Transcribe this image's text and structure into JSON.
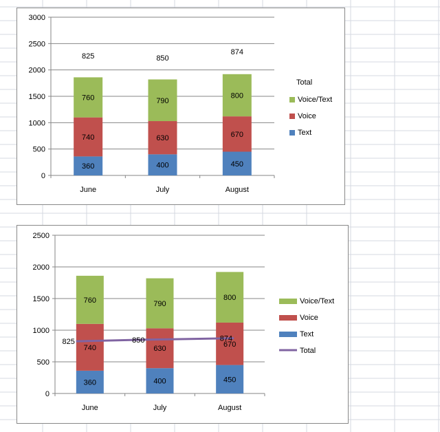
{
  "colors": {
    "text": "#4F81BD",
    "voice": "#C0504D",
    "voice_text": "#9BBB59",
    "total": "#8064A2",
    "gridline": "#868686",
    "cell_grid": "#D4D8E0"
  },
  "chart_data": [
    {
      "type": "bar",
      "stacked": true,
      "categories": [
        "June",
        "July",
        "August"
      ],
      "series": [
        {
          "name": "Text",
          "values": [
            360,
            400,
            450
          ],
          "color_key": "text"
        },
        {
          "name": "Voice",
          "values": [
            740,
            630,
            670
          ],
          "color_key": "voice"
        },
        {
          "name": "Voice/Text",
          "values": [
            760,
            790,
            800
          ],
          "color_key": "voice_text"
        }
      ],
      "totals": {
        "name": "Total",
        "values": [
          825,
          850,
          874
        ],
        "display": "labels-only"
      },
      "legend": {
        "title": "Total",
        "items": [
          "Voice/Text",
          "Voice",
          "Text"
        ],
        "position": "right"
      },
      "ylim": [
        0,
        3000
      ],
      "yticks": [
        0,
        500,
        1000,
        1500,
        2000,
        2500,
        3000
      ],
      "grid": true,
      "title": "",
      "xlabel": "",
      "ylabel": ""
    },
    {
      "type": "bar",
      "stacked": true,
      "categories": [
        "June",
        "July",
        "August"
      ],
      "series": [
        {
          "name": "Text",
          "values": [
            360,
            400,
            450
          ],
          "color_key": "text"
        },
        {
          "name": "Voice",
          "values": [
            740,
            630,
            670
          ],
          "color_key": "voice"
        },
        {
          "name": "Voice/Text",
          "values": [
            760,
            790,
            800
          ],
          "color_key": "voice_text"
        }
      ],
      "totals": {
        "name": "Total",
        "values": [
          825,
          850,
          874
        ],
        "display": "line"
      },
      "legend": {
        "items": [
          "Voice/Text",
          "Voice",
          "Text",
          "Total"
        ],
        "position": "right"
      },
      "ylim": [
        0,
        2500
      ],
      "yticks": [
        0,
        500,
        1000,
        1500,
        2000,
        2500
      ],
      "grid": true,
      "title": "",
      "xlabel": "",
      "ylabel": ""
    }
  ]
}
